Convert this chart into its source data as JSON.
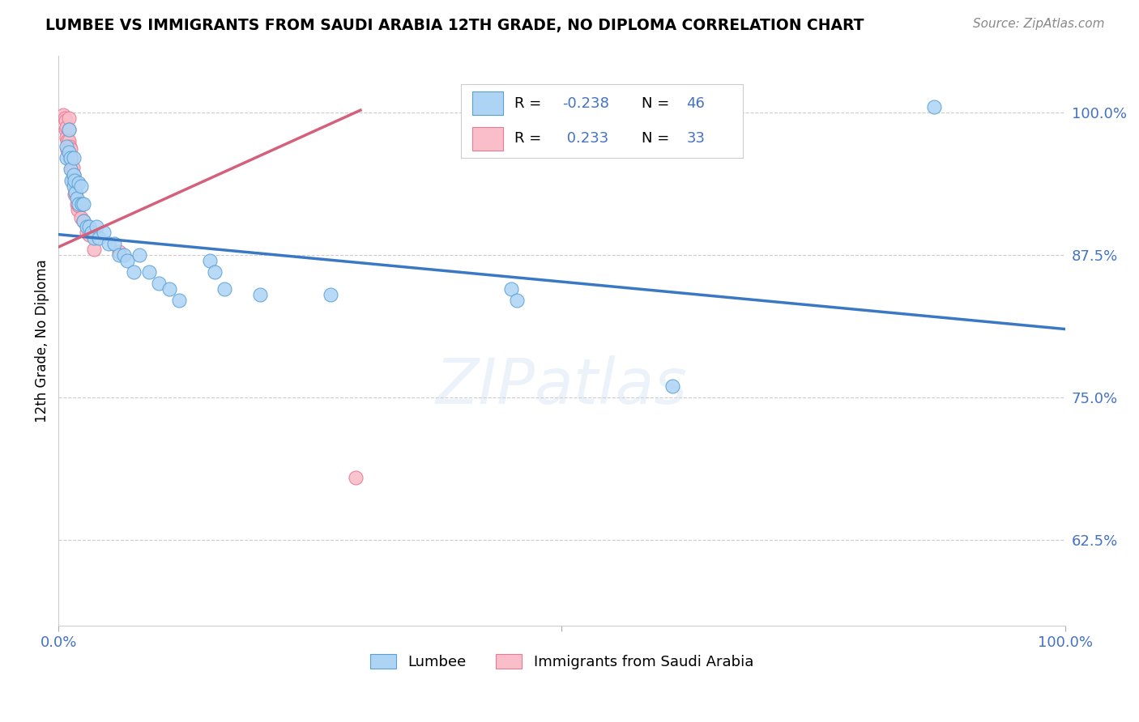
{
  "title": "LUMBEE VS IMMIGRANTS FROM SAUDI ARABIA 12TH GRADE, NO DIPLOMA CORRELATION CHART",
  "source": "Source: ZipAtlas.com",
  "ylabel": "12th Grade, No Diploma",
  "xlim": [
    0.0,
    1.0
  ],
  "ylim": [
    0.55,
    1.05
  ],
  "yticks": [
    0.625,
    0.75,
    0.875,
    1.0
  ],
  "ytick_labels": [
    "62.5%",
    "75.0%",
    "87.5%",
    "100.0%"
  ],
  "xticks": [
    0.0,
    0.5,
    1.0
  ],
  "xtick_labels": [
    "0.0%",
    "",
    "100.0%"
  ],
  "R_blue": -0.238,
  "N_blue": 46,
  "R_pink": 0.233,
  "N_pink": 33,
  "blue_color": "#ADD4F5",
  "pink_color": "#F9BEC9",
  "blue_edge_color": "#5A9FD4",
  "pink_edge_color": "#E87A96",
  "blue_line_color": "#3B78C3",
  "pink_line_color": "#D4607C",
  "legend_R_color": "#4472C4",
  "blue_line_x0": 0.0,
  "blue_line_x1": 1.0,
  "blue_line_y0": 0.893,
  "blue_line_y1": 0.81,
  "pink_line_x0": 0.0,
  "pink_line_x1": 0.3,
  "pink_line_y0": 0.882,
  "pink_line_y1": 1.002,
  "blue_points_x": [
    0.008,
    0.008,
    0.01,
    0.01,
    0.012,
    0.012,
    0.013,
    0.015,
    0.015,
    0.015,
    0.016,
    0.017,
    0.018,
    0.02,
    0.02,
    0.022,
    0.023,
    0.025,
    0.025,
    0.028,
    0.03,
    0.033,
    0.035,
    0.038,
    0.04,
    0.045,
    0.05,
    0.055,
    0.06,
    0.065,
    0.068,
    0.075,
    0.08,
    0.09,
    0.1,
    0.11,
    0.12,
    0.15,
    0.155,
    0.165,
    0.2,
    0.27,
    0.45,
    0.455,
    0.61,
    0.87
  ],
  "blue_points_y": [
    0.97,
    0.96,
    0.985,
    0.965,
    0.96,
    0.95,
    0.94,
    0.96,
    0.945,
    0.935,
    0.94,
    0.93,
    0.925,
    0.938,
    0.92,
    0.935,
    0.92,
    0.92,
    0.905,
    0.9,
    0.9,
    0.895,
    0.89,
    0.9,
    0.89,
    0.895,
    0.885,
    0.885,
    0.875,
    0.875,
    0.87,
    0.86,
    0.875,
    0.86,
    0.85,
    0.845,
    0.835,
    0.87,
    0.86,
    0.845,
    0.84,
    0.84,
    0.845,
    0.835,
    0.76,
    1.005
  ],
  "pink_points_x": [
    0.005,
    0.006,
    0.007,
    0.007,
    0.008,
    0.008,
    0.009,
    0.009,
    0.01,
    0.01,
    0.01,
    0.011,
    0.011,
    0.012,
    0.012,
    0.013,
    0.013,
    0.014,
    0.014,
    0.015,
    0.016,
    0.016,
    0.017,
    0.018,
    0.019,
    0.02,
    0.022,
    0.025,
    0.028,
    0.03,
    0.035,
    0.06,
    0.295
  ],
  "pink_points_y": [
    0.998,
    0.995,
    0.993,
    0.985,
    0.987,
    0.978,
    0.975,
    0.967,
    0.995,
    0.985,
    0.975,
    0.97,
    0.96,
    0.968,
    0.958,
    0.96,
    0.95,
    0.952,
    0.942,
    0.945,
    0.937,
    0.928,
    0.93,
    0.92,
    0.915,
    0.918,
    0.908,
    0.905,
    0.895,
    0.893,
    0.88,
    0.878,
    0.68
  ]
}
